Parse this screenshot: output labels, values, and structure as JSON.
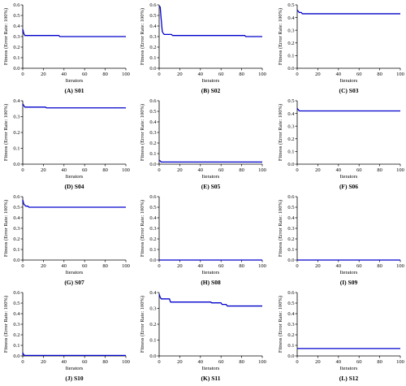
{
  "figure": {
    "line_color": "#0000cc",
    "axis_color": "#000000"
  },
  "chart_data": [
    {
      "type": "line",
      "caption": "(A) S01",
      "xlabel": "Iterators",
      "ylabel": "Fitness (Error Rate: 100%)",
      "xlim": [
        0,
        100
      ],
      "ylim": [
        0,
        0.6
      ],
      "xticks": [
        0,
        20,
        40,
        60,
        80,
        100
      ],
      "yticks": [
        0.0,
        0.1,
        0.2,
        0.3,
        0.4,
        0.5,
        0.6
      ],
      "series": [
        {
          "x": [
            0,
            1,
            2,
            3,
            35,
            36,
            100
          ],
          "y": [
            0.37,
            0.33,
            0.31,
            0.31,
            0.31,
            0.3,
            0.3
          ]
        }
      ]
    },
    {
      "type": "line",
      "caption": "(B) S02",
      "xlabel": "Iterators",
      "ylabel": "Fitness (Error Rate: 100%)",
      "xlim": [
        0,
        100
      ],
      "ylim": [
        0,
        0.6
      ],
      "xticks": [
        0,
        20,
        40,
        60,
        80,
        100
      ],
      "yticks": [
        0.0,
        0.1,
        0.2,
        0.3,
        0.4,
        0.5,
        0.6
      ],
      "series": [
        {
          "x": [
            0,
            1,
            2,
            3,
            4,
            5,
            12,
            13,
            83,
            84,
            100
          ],
          "y": [
            0.59,
            0.58,
            0.46,
            0.35,
            0.33,
            0.32,
            0.32,
            0.31,
            0.31,
            0.3,
            0.3
          ]
        }
      ]
    },
    {
      "type": "line",
      "caption": "(C) S03",
      "xlabel": "Iterators",
      "ylabel": "Fitness (Error Rate: 100%)",
      "xlim": [
        0,
        100
      ],
      "ylim": [
        0,
        0.5
      ],
      "xticks": [
        0,
        20,
        40,
        60,
        80,
        100
      ],
      "yticks": [
        0.0,
        0.1,
        0.2,
        0.3,
        0.4,
        0.5
      ],
      "series": [
        {
          "x": [
            0,
            1,
            2,
            4,
            5,
            100
          ],
          "y": [
            0.46,
            0.45,
            0.44,
            0.44,
            0.43,
            0.43
          ]
        }
      ]
    },
    {
      "type": "line",
      "caption": "(D) S04",
      "xlabel": "Iterators",
      "ylabel": "Fitness (Error Rate: 100%)",
      "xlim": [
        0,
        100
      ],
      "ylim": [
        0,
        0.4
      ],
      "xticks": [
        0,
        20,
        40,
        60,
        80,
        100
      ],
      "yticks": [
        0.0,
        0.1,
        0.2,
        0.3,
        0.4
      ],
      "series": [
        {
          "x": [
            0,
            1,
            2,
            22,
            23,
            100
          ],
          "y": [
            0.38,
            0.37,
            0.36,
            0.36,
            0.355,
            0.355
          ]
        }
      ]
    },
    {
      "type": "line",
      "caption": "(E) S05",
      "xlabel": "Iterators",
      "ylabel": "Fitness (Error Rate: 100%)",
      "xlim": [
        0,
        100
      ],
      "ylim": [
        0,
        0.6
      ],
      "xticks": [
        0,
        20,
        40,
        60,
        80,
        100
      ],
      "yticks": [
        0.0,
        0.1,
        0.2,
        0.3,
        0.4,
        0.5,
        0.6
      ],
      "series": [
        {
          "x": [
            0,
            1,
            2,
            100
          ],
          "y": [
            0.04,
            0.03,
            0.02,
            0.02
          ]
        }
      ]
    },
    {
      "type": "line",
      "caption": "(F) S06",
      "xlabel": "Iterators",
      "ylabel": "Fitness (Error Rate: 100%)",
      "xlim": [
        0,
        100
      ],
      "ylim": [
        0,
        0.5
      ],
      "xticks": [
        0,
        20,
        40,
        60,
        80,
        100
      ],
      "yticks": [
        0.0,
        0.1,
        0.2,
        0.3,
        0.4,
        0.5
      ],
      "series": [
        {
          "x": [
            0,
            1,
            2,
            100
          ],
          "y": [
            0.44,
            0.43,
            0.42,
            0.42
          ]
        }
      ]
    },
    {
      "type": "line",
      "caption": "(G) S07",
      "xlabel": "Iterators",
      "ylabel": "Fitness (Error Rate: 100%)",
      "xlim": [
        0,
        100
      ],
      "ylim": [
        0,
        0.6
      ],
      "xticks": [
        0,
        20,
        40,
        60,
        80,
        100
      ],
      "yticks": [
        0.0,
        0.1,
        0.2,
        0.3,
        0.4,
        0.5,
        0.6
      ],
      "series": [
        {
          "x": [
            0,
            1,
            2,
            3,
            5,
            6,
            100
          ],
          "y": [
            0.57,
            0.53,
            0.52,
            0.51,
            0.51,
            0.5,
            0.5
          ]
        }
      ]
    },
    {
      "type": "line",
      "caption": "(H) S08",
      "xlabel": "Iterators",
      "ylabel": "Fitness (Error Rate: 100%)",
      "xlim": [
        0,
        100
      ],
      "ylim": [
        0,
        0.6
      ],
      "xticks": [
        0,
        20,
        40,
        60,
        80,
        100
      ],
      "yticks": [
        0.0,
        0.1,
        0.2,
        0.3,
        0.4,
        0.5,
        0.6
      ],
      "series": [
        {
          "x": [
            0,
            100
          ],
          "y": [
            0.0,
            0.0
          ]
        }
      ]
    },
    {
      "type": "line",
      "caption": "(I) S09",
      "xlabel": "Iterators",
      "ylabel": "Fitness (Error Rate: 100%)",
      "xlim": [
        0,
        100
      ],
      "ylim": [
        0,
        0.6
      ],
      "xticks": [
        0,
        20,
        40,
        60,
        80,
        100
      ],
      "yticks": [
        0.0,
        0.1,
        0.2,
        0.3,
        0.4,
        0.5,
        0.6
      ],
      "series": [
        {
          "x": [
            0,
            100
          ],
          "y": [
            0.0,
            0.0
          ]
        }
      ]
    },
    {
      "type": "line",
      "caption": "(J) S10",
      "xlabel": "Iterators",
      "ylabel": "Fitness (Error Rate: 100%)",
      "xlim": [
        0,
        100
      ],
      "ylim": [
        0,
        0.6
      ],
      "xticks": [
        0,
        20,
        40,
        60,
        80,
        100
      ],
      "yticks": [
        0.0,
        0.1,
        0.2,
        0.3,
        0.4,
        0.5,
        0.6
      ],
      "series": [
        {
          "x": [
            0,
            1,
            2,
            100
          ],
          "y": [
            0.03,
            0.01,
            0.005,
            0.005
          ]
        }
      ]
    },
    {
      "type": "line",
      "caption": "(K) S11",
      "xlabel": "Iterators",
      "ylabel": "Fitness (Error Rate: 100%)",
      "xlim": [
        0,
        100
      ],
      "ylim": [
        0,
        0.4
      ],
      "xticks": [
        0,
        20,
        40,
        60,
        80,
        100
      ],
      "yticks": [
        0.0,
        0.1,
        0.2,
        0.3,
        0.4
      ],
      "series": [
        {
          "x": [
            0,
            1,
            2,
            10,
            11,
            50,
            51,
            60,
            61,
            65,
            66,
            100
          ],
          "y": [
            0.39,
            0.37,
            0.36,
            0.36,
            0.34,
            0.34,
            0.335,
            0.335,
            0.325,
            0.325,
            0.315,
            0.315
          ]
        }
      ]
    },
    {
      "type": "line",
      "caption": "(L) S12",
      "xlabel": "Iterators",
      "ylabel": "Fitness (Error Rate: 100%)",
      "xlim": [
        0,
        100
      ],
      "ylim": [
        0,
        0.6
      ],
      "xticks": [
        0,
        20,
        40,
        60,
        80,
        100
      ],
      "yticks": [
        0.0,
        0.1,
        0.2,
        0.3,
        0.4,
        0.5,
        0.6
      ],
      "series": [
        {
          "x": [
            0,
            100
          ],
          "y": [
            0.07,
            0.07
          ]
        }
      ]
    }
  ]
}
